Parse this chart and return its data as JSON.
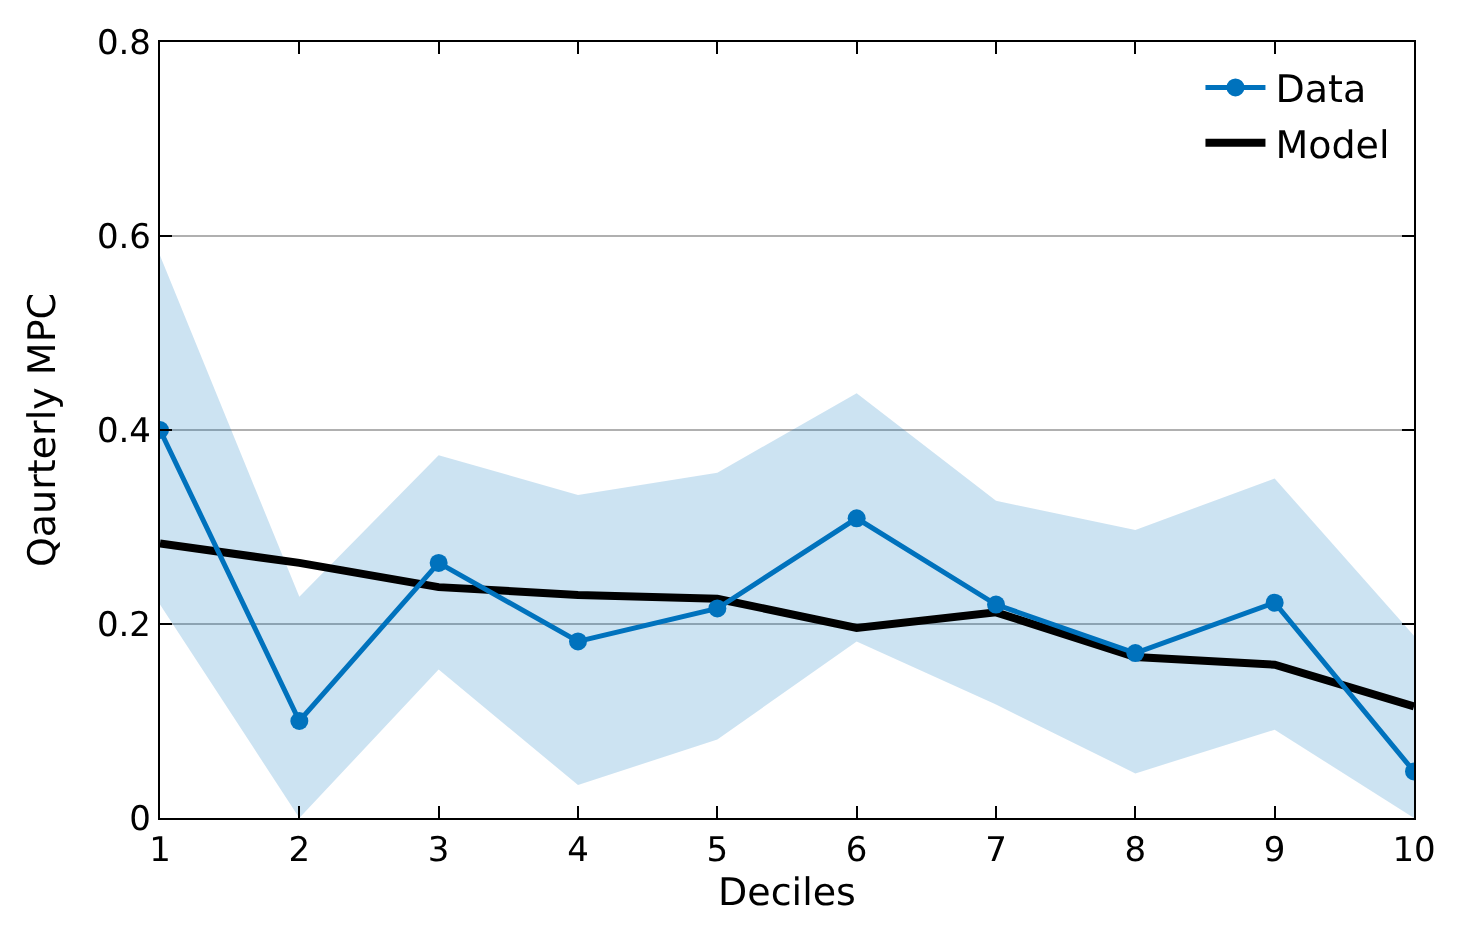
{
  "chart_data": {
    "type": "line",
    "xlabel": "Deciles",
    "ylabel": "Qaurterly MPC",
    "x": [
      1,
      2,
      3,
      4,
      5,
      6,
      7,
      8,
      9,
      10
    ],
    "series": [
      {
        "name": "Data",
        "color": "#0072bd",
        "marker": "circle",
        "values": [
          0.4,
          0.1,
          0.263,
          0.182,
          0.216,
          0.309,
          0.22,
          0.17,
          0.222,
          0.048
        ],
        "lower": [
          0.22,
          0.0,
          0.153,
          0.034,
          0.081,
          0.182,
          0.117,
          0.046,
          0.091,
          0.0
        ],
        "upper": [
          0.58,
          0.228,
          0.374,
          0.333,
          0.356,
          0.438,
          0.327,
          0.297,
          0.35,
          0.188
        ]
      },
      {
        "name": "Model",
        "color": "#000000",
        "marker": "none",
        "values": [
          0.283,
          0.263,
          0.238,
          0.23,
          0.226,
          0.196,
          0.212,
          0.166,
          0.158,
          0.115
        ]
      }
    ],
    "xlim": [
      1,
      10
    ],
    "xticks": [
      1,
      2,
      3,
      4,
      5,
      6,
      7,
      8,
      9,
      10
    ],
    "ylim": [
      0,
      0.8
    ],
    "yticks": [
      {
        "value": 0,
        "label": "0"
      },
      0.2,
      0.4,
      0.6,
      0.8
    ],
    "grid": "y",
    "legend": "top right"
  }
}
